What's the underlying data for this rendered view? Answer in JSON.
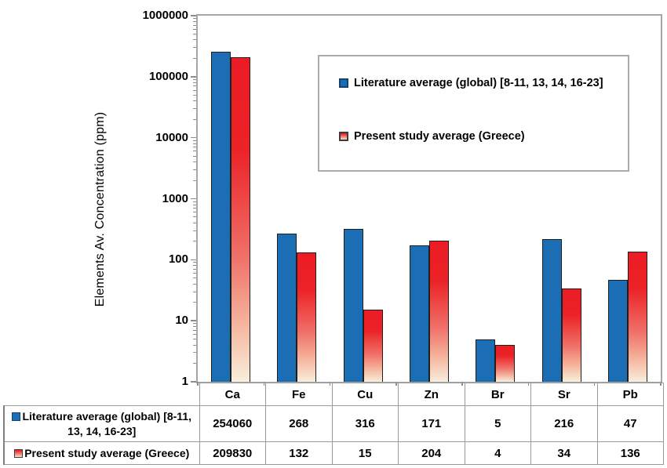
{
  "chart_data": {
    "type": "bar",
    "title": "",
    "xlabel": "",
    "ylabel": "Elements Av. Concentration (ppm)",
    "yscale": "log",
    "ylim": [
      1,
      1000000
    ],
    "ytick_labels": [
      "1",
      "10",
      "100",
      "1000",
      "10000",
      "100000",
      "1000000"
    ],
    "categories": [
      "Ca",
      "Fe",
      "Cu",
      "Zn",
      "Br",
      "Sr",
      "Pb"
    ],
    "series": [
      {
        "name": "Literature average (global) [8-11, 13, 14, 16-23]",
        "color": "#1C6EB4",
        "values": [
          254060,
          268,
          316,
          171,
          5,
          216,
          47
        ]
      },
      {
        "name": "Present study average (Greece)",
        "color": "#EC1C24",
        "values": [
          209830,
          132,
          15,
          204,
          4,
          34,
          136
        ]
      }
    ],
    "legend_position": "inside-upper-right",
    "grid": false
  },
  "table": {
    "row_headers": [
      "Literature average (global) [8-11, 13, 14, 16-23]",
      "Present study average (Greece)"
    ]
  },
  "colors": {
    "bar_blue": "#1C6EB4",
    "bar_red_top": "#EC1C24",
    "bar_red_bottom": "#F8EEDC",
    "bar_outline": "#1F1F1F",
    "axis_gray": "#A6A6A6",
    "table_border": "#7F7F7F",
    "text": "#000000"
  }
}
